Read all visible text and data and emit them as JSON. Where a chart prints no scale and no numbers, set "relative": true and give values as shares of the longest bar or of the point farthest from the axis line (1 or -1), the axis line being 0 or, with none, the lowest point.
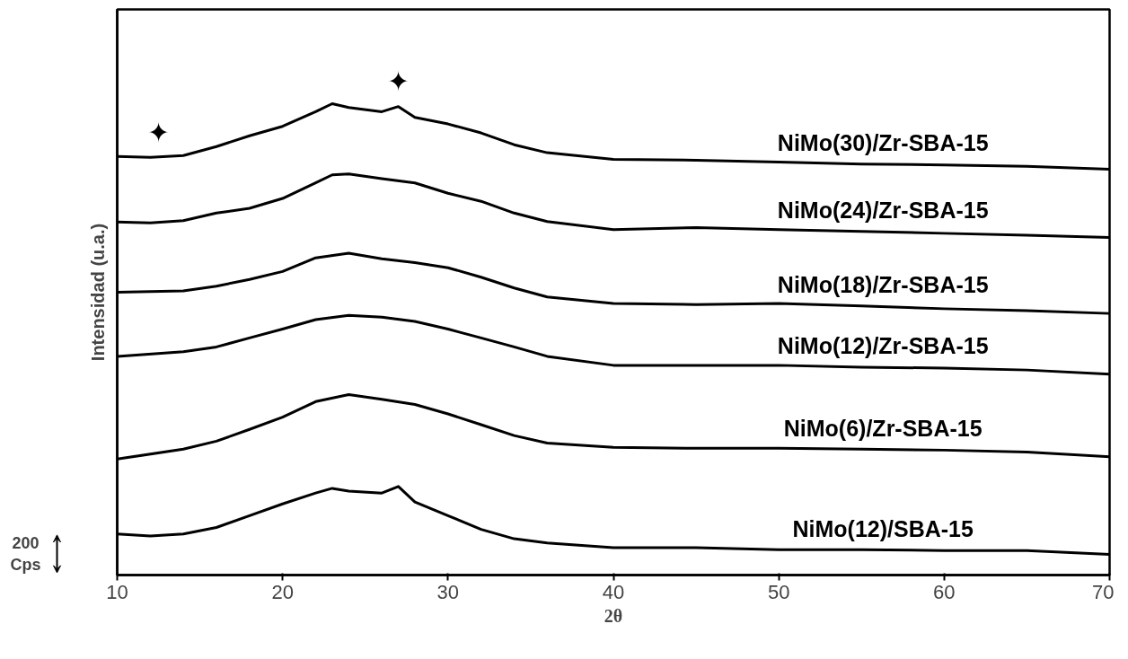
{
  "chart_data": {
    "type": "line",
    "relative": true,
    "xlabel": "2θ",
    "ylabel": "Intensidad (u.a.)",
    "xlim": [
      10,
      70
    ],
    "xticks": [
      10,
      20,
      30,
      40,
      50,
      60,
      70
    ],
    "grid": false,
    "legend": false,
    "marker": "none",
    "line_style": "solid",
    "annotations": [
      "200 Cps",
      {
        "text": "✦",
        "x": 12.5,
        "y": 0.886
      },
      {
        "text": "✦",
        "x": 27,
        "y": 0.994
      }
    ],
    "series": [
      {
        "name": "NiMo(30)/Zr-SBA-15",
        "color": "#000000",
        "x": [
          10,
          12,
          14,
          16,
          18,
          20,
          22,
          23,
          24,
          26,
          27,
          28,
          30,
          32,
          34,
          36,
          40,
          45,
          50,
          55,
          60,
          65,
          70
        ],
        "values": [
          0.888,
          0.886,
          0.89,
          0.909,
          0.932,
          0.952,
          0.983,
          1.0,
          0.992,
          0.983,
          0.994,
          0.971,
          0.957,
          0.938,
          0.913,
          0.896,
          0.882,
          0.88,
          0.876,
          0.872,
          0.87,
          0.867,
          0.861
        ]
      },
      {
        "name": "NiMo(24)/Zr-SBA-15",
        "color": "#000000",
        "x": [
          10,
          12,
          14,
          16,
          18,
          20,
          22,
          23,
          24,
          26,
          28,
          30,
          32,
          34,
          36,
          40,
          45,
          50,
          55,
          60,
          65,
          70
        ],
        "values": [
          0.749,
          0.747,
          0.752,
          0.768,
          0.778,
          0.799,
          0.832,
          0.849,
          0.851,
          0.841,
          0.832,
          0.81,
          0.793,
          0.768,
          0.75,
          0.733,
          0.737,
          0.733,
          0.729,
          0.725,
          0.721,
          0.716
        ]
      },
      {
        "name": "NiMo(18)/Zr-SBA-15",
        "color": "#000000",
        "x": [
          10,
          14,
          16,
          18,
          20,
          22,
          24,
          26,
          28,
          30,
          32,
          34,
          36,
          40,
          45,
          50,
          55,
          60,
          65,
          70
        ],
        "values": [
          0.6,
          0.603,
          0.613,
          0.627,
          0.644,
          0.673,
          0.683,
          0.671,
          0.663,
          0.652,
          0.632,
          0.609,
          0.59,
          0.576,
          0.574,
          0.576,
          0.571,
          0.565,
          0.561,
          0.555
        ]
      },
      {
        "name": "NiMo(12)/Zr-SBA-15",
        "color": "#000000",
        "x": [
          10,
          14,
          16,
          18,
          20,
          22,
          24,
          26,
          28,
          30,
          32,
          34,
          36,
          40,
          45,
          50,
          55,
          60,
          65,
          70
        ],
        "values": [
          0.464,
          0.474,
          0.484,
          0.503,
          0.522,
          0.542,
          0.551,
          0.547,
          0.538,
          0.522,
          0.503,
          0.484,
          0.464,
          0.445,
          0.445,
          0.445,
          0.441,
          0.439,
          0.435,
          0.426
        ]
      },
      {
        "name": "NiMo(6)/Zr-SBA-15",
        "color": "#000000",
        "x": [
          10,
          14,
          16,
          18,
          20,
          22,
          24,
          26,
          28,
          30,
          32,
          34,
          36,
          40,
          45,
          50,
          55,
          60,
          65,
          70
        ],
        "values": [
          0.246,
          0.267,
          0.284,
          0.309,
          0.335,
          0.368,
          0.383,
          0.373,
          0.362,
          0.342,
          0.319,
          0.296,
          0.28,
          0.271,
          0.269,
          0.269,
          0.267,
          0.265,
          0.261,
          0.251
        ]
      },
      {
        "name": "NiMo(12)/SBA-15",
        "color": "#000000",
        "x": [
          10,
          12,
          14,
          16,
          18,
          20,
          22,
          23,
          24,
          26,
          27,
          28,
          30,
          32,
          34,
          36,
          40,
          45,
          50,
          55,
          60,
          65,
          70
        ],
        "values": [
          0.087,
          0.083,
          0.087,
          0.101,
          0.126,
          0.151,
          0.174,
          0.184,
          0.178,
          0.174,
          0.188,
          0.155,
          0.126,
          0.097,
          0.077,
          0.068,
          0.058,
          0.058,
          0.054,
          0.054,
          0.052,
          0.052,
          0.044
        ]
      }
    ]
  }
}
